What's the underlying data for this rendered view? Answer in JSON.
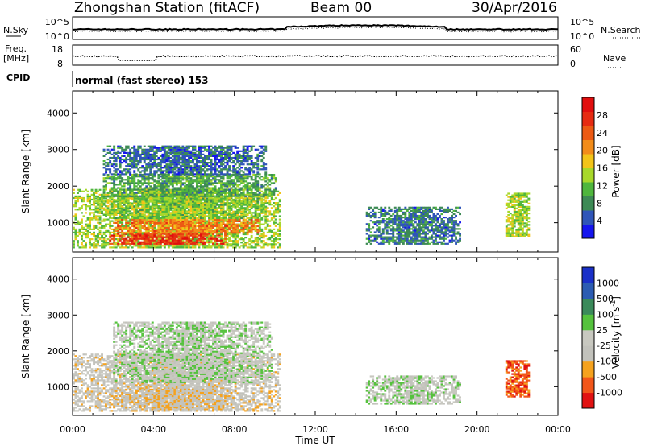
{
  "header": {
    "station": "Zhongshan Station (fitACF)",
    "beam": "Beam 00",
    "date": "30/Apr/2016"
  },
  "noise_panel": {
    "left_label": "N.Sky",
    "left_ticks": [
      "10^5",
      "10^0"
    ],
    "right_label": "N.Search",
    "right_ticks": [
      "10^5",
      "10^0"
    ]
  },
  "freq_panel": {
    "left_label_1": "Freq.",
    "left_label_2": "[MHz]",
    "left_ticks": [
      "18",
      "8"
    ],
    "right_label": "Nave",
    "right_ticks": [
      "60",
      "0"
    ]
  },
  "cpid_panel": {
    "label": "CPID",
    "text": "normal (fast stereo) 153"
  },
  "colors": {
    "power_scale": [
      "#1515ee",
      "#2f55b8",
      "#3d8a55",
      "#4fb63d",
      "#a8d82a",
      "#f2c419",
      "#f28c1a",
      "#ec5a14",
      "#e62b12",
      "#e10e0e"
    ],
    "velocity_scale": [
      "#e11212",
      "#f2561a",
      "#f5a21e",
      "#c2c2bc",
      "#c8c8c0",
      "#55c23d",
      "#3a8a5a",
      "#2c5cb2",
      "#1a30c8"
    ]
  },
  "chart_data": [
    {
      "type": "heatmap",
      "title": "",
      "ylabel": "Slant Range [km]",
      "xlabel": "",
      "ylim": [
        200,
        4600
      ],
      "xlim": [
        0,
        24
      ],
      "yticks": [
        "1000",
        "2000",
        "3000",
        "4000"
      ],
      "ytick_values": [
        1000,
        2000,
        3000,
        4000
      ],
      "colorbar_label": "Power [dB]",
      "colorbar_ticks": [
        "4",
        "8",
        "12",
        "16",
        "20",
        "24",
        "28"
      ],
      "colorbar_range": [
        0,
        32
      ],
      "regions": [
        {
          "t0": 0.0,
          "t1": 10.2,
          "r0": 300,
          "r1": 1900,
          "value": 14
        },
        {
          "t0": 1.8,
          "t1": 7.5,
          "r0": 400,
          "r1": 700,
          "value": 27
        },
        {
          "t0": 2.0,
          "t1": 9.2,
          "r0": 700,
          "r1": 1100,
          "value": 22
        },
        {
          "t0": 1.0,
          "t1": 9.5,
          "r0": 1100,
          "r1": 1700,
          "value": 13
        },
        {
          "t0": 1.5,
          "t1": 10.0,
          "r0": 1700,
          "r1": 2300,
          "value": 10
        },
        {
          "t0": 1.5,
          "t1": 9.5,
          "r0": 2300,
          "r1": 3100,
          "value": 6
        },
        {
          "t0": 14.5,
          "t1": 19.2,
          "r0": 400,
          "r1": 1400,
          "value": 7
        },
        {
          "t0": 21.4,
          "t1": 22.6,
          "r0": 600,
          "r1": 1800,
          "value": 14
        }
      ]
    },
    {
      "type": "heatmap",
      "title": "",
      "ylabel": "Slant Range [km]",
      "xlabel": "Time UT",
      "ylim": [
        200,
        4600
      ],
      "xlim": [
        0,
        24
      ],
      "yticks": [
        "1000",
        "2000",
        "3000",
        "4000"
      ],
      "ytick_values": [
        1000,
        2000,
        3000,
        4000
      ],
      "xticks": [
        "00:00",
        "04:00",
        "08:00",
        "12:00",
        "16:00",
        "20:00",
        "00:00"
      ],
      "xtick_values": [
        0,
        4,
        8,
        12,
        16,
        20,
        24
      ],
      "colorbar_label": "Velocity [m s",
      "colorbar_label_sup": "-1",
      "colorbar_label_end": "]",
      "colorbar_ticks": [
        "-1000",
        "-500",
        "-100",
        "-25",
        "25",
        "100",
        "500",
        "1000"
      ],
      "colorbar_range": [
        -1200,
        1200
      ],
      "regions": [
        {
          "t0": 0.0,
          "t1": 10.2,
          "r0": 300,
          "r1": 1900,
          "value": -200
        },
        {
          "t0": 2.0,
          "t1": 9.8,
          "r0": 1100,
          "r1": 2800,
          "value": 10
        },
        {
          "t0": 1.8,
          "t1": 8.0,
          "r0": 400,
          "r1": 900,
          "value": -300
        },
        {
          "t0": 14.5,
          "t1": 19.2,
          "r0": 500,
          "r1": 1300,
          "value": 0
        },
        {
          "t0": 21.4,
          "t1": 22.6,
          "r0": 700,
          "r1": 1700,
          "value": -800
        }
      ]
    }
  ]
}
